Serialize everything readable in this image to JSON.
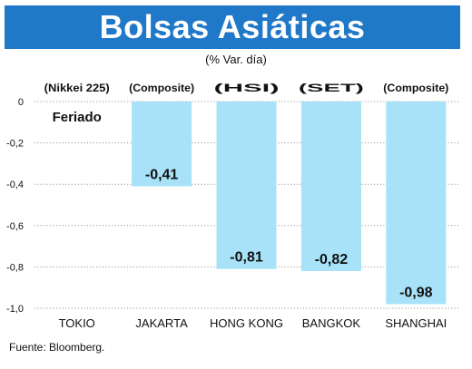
{
  "title": "Bolsas Asiáticas",
  "subtitle": "(% Var. día)",
  "source": "Fuente: Bloomberg.",
  "colors": {
    "title_bg": "#1f78c8",
    "bar": "#a8e2f8",
    "grid": "#9a9a9a",
    "text": "#111111"
  },
  "chart_data": {
    "type": "bar",
    "categories": [
      "TOKIO",
      "JAKARTA",
      "HONG KONG",
      "BANGKOK",
      "SHANGHAI"
    ],
    "index_labels": [
      "(Nikkei 225)",
      "(Composite)",
      "(HSI)",
      "(SET)",
      "(Composite)"
    ],
    "values": [
      null,
      -0.41,
      -0.81,
      -0.82,
      -0.98
    ],
    "value_labels": [
      "Feriado",
      "-0,41",
      "-0,81",
      "-0,82",
      "-0,98"
    ],
    "ylim": [
      -1.0,
      0
    ],
    "yticks": [
      0,
      -0.2,
      -0.4,
      -0.6,
      -0.8,
      -1.0
    ],
    "ytick_labels": [
      "0",
      "-0,2",
      "-0,4",
      "-0,6",
      "-0,8",
      "-1,0"
    ],
    "grid": true
  }
}
